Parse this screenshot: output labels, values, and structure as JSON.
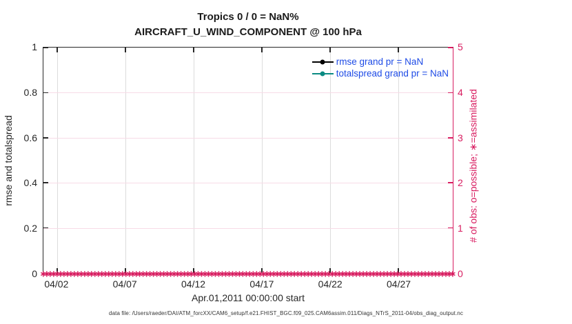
{
  "title": {
    "line1": "Tropics 0 / 0 = NaN%",
    "line2": "AIRCRAFT_U_WIND_COMPONENT @ 100 hPa"
  },
  "axes": {
    "left": {
      "label": "rmse and totalspread",
      "ticks": [
        "0",
        "0.2",
        "0.4",
        "0.6",
        "0.8",
        "1"
      ],
      "range": [
        0,
        1
      ],
      "color": "#262626"
    },
    "right": {
      "label": "# of obs: o=possible; ∗=assimilated",
      "ticks": [
        "0",
        "1",
        "2",
        "3",
        "4",
        "5"
      ],
      "range": [
        0,
        5
      ],
      "color": "#d81b5f"
    },
    "x": {
      "tick_labels": [
        "04/02",
        "04/07",
        "04/12",
        "04/17",
        "04/22",
        "04/27"
      ],
      "tick_day_offsets": [
        1,
        6,
        11,
        16,
        21,
        26
      ],
      "span_days": 30,
      "label": "Apr.01,2011 00:00:00 start"
    },
    "grid_color_vertical": "#dcdcdc",
    "grid_color_horizontal": "#f7dbe6"
  },
  "legend": {
    "text_color": "#1e4be6",
    "entries": [
      {
        "label": "rmse grand pr = NaN",
        "line_color": "#000000",
        "marker": "filled-circle"
      },
      {
        "label": "totalspread grand pr = NaN",
        "line_color": "#0a8a82",
        "marker": "filled-circle"
      }
    ]
  },
  "caption": "data file: /Users/raeder/DAI/ATM_forcXX/CAM6_setup/f.e21.FHIST_BGC.f09_025.CAM6assim.011/Diags_NTrS_2011-04/obs_diag_output.nc",
  "chart_data": {
    "type": "line",
    "title": "Tropics 0 / 0 = NaN%",
    "subtitle": "AIRCRAFT_U_WIND_COMPONENT @ 100 hPa",
    "x_axis": {
      "label": "Apr.01,2011 00:00:00 start",
      "start": "04/01/2011 00:00",
      "end": "05/01/2011 00:00",
      "tick_labels": [
        "04/02",
        "04/07",
        "04/12",
        "04/17",
        "04/22",
        "04/27"
      ]
    },
    "y_axis_left": {
      "label": "rmse and totalspread",
      "lim": [
        0,
        1
      ],
      "ticks": [
        0,
        0.2,
        0.4,
        0.6,
        0.8,
        1
      ]
    },
    "y_axis_right": {
      "label": "# of obs: o=possible; ∗=assimilated",
      "lim": [
        0,
        5
      ],
      "ticks": [
        0,
        1,
        2,
        3,
        4,
        5
      ]
    },
    "grid": true,
    "legend_position": "top-right-inside",
    "series": [
      {
        "name": "rmse grand pr = NaN",
        "color": "#000000",
        "marker": "filled-circle",
        "values": "all NaN (no line drawn)"
      },
      {
        "name": "totalspread grand pr = NaN",
        "color": "#0a8a82",
        "marker": "filled-circle",
        "values": "all NaN (no line drawn)"
      },
      {
        "name": "# of obs possible (o)",
        "color": "#d81b5f",
        "marker": "o",
        "n_points": 120,
        "constant_value": 0
      },
      {
        "name": "# of obs assimilated (∗)",
        "color": "#d81b5f",
        "marker": "∗",
        "n_points": 120,
        "constant_value": 0
      }
    ],
    "obs_marker_band": {
      "glyph": "∗",
      "count": 120,
      "value": 0,
      "color": "#d81b5f"
    }
  }
}
